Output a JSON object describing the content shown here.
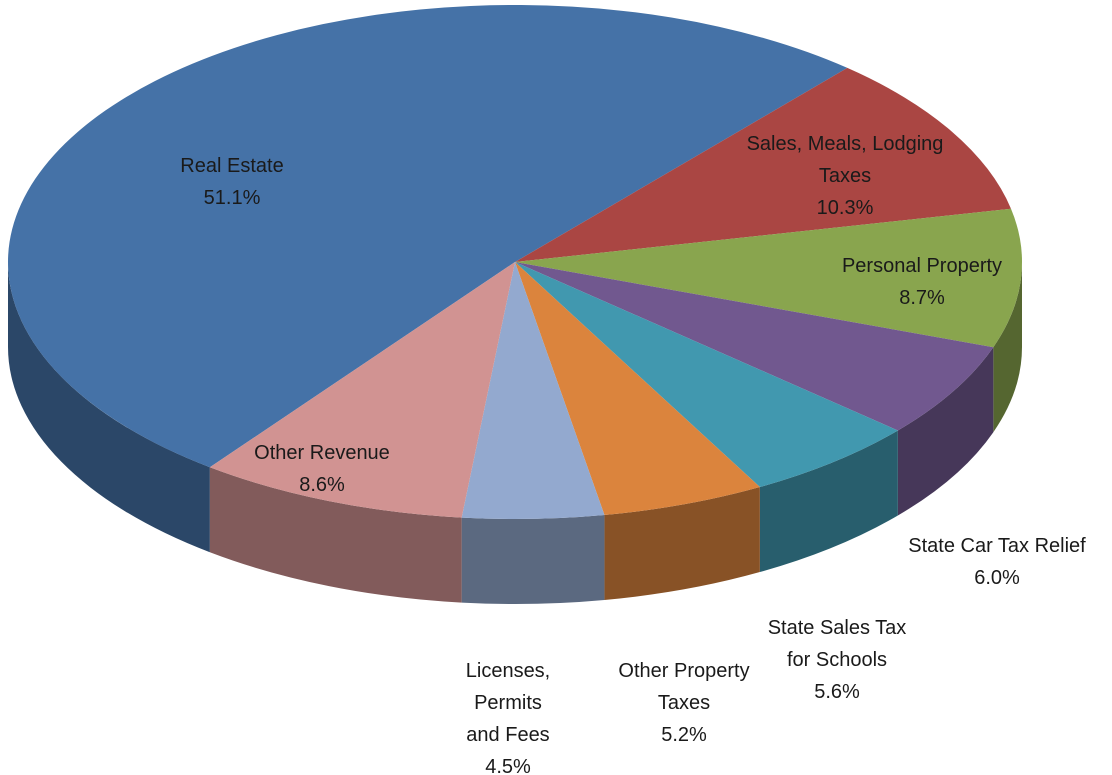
{
  "chart_data": {
    "type": "pie",
    "categories": [
      "Real Estate",
      "Sales, Meals, Lodging Taxes",
      "Personal Property",
      "State Car Tax Relief",
      "State Sales Tax for Schools",
      "Other Property Taxes",
      "Licenses, Permits and Fees",
      "Other Revenue"
    ],
    "values": [
      51.1,
      10.3,
      8.7,
      6.0,
      5.6,
      5.2,
      4.5,
      8.6
    ],
    "value_labels": [
      "51.1%",
      "10.3%",
      "8.7%",
      "6.0%",
      "5.6%",
      "5.2%",
      "4.5%",
      "8.6%"
    ],
    "colors": [
      "#4572a7",
      "#aa4643",
      "#89a54e",
      "#71588f",
      "#4198af",
      "#db843d",
      "#93a9cf",
      "#d19392"
    ]
  }
}
